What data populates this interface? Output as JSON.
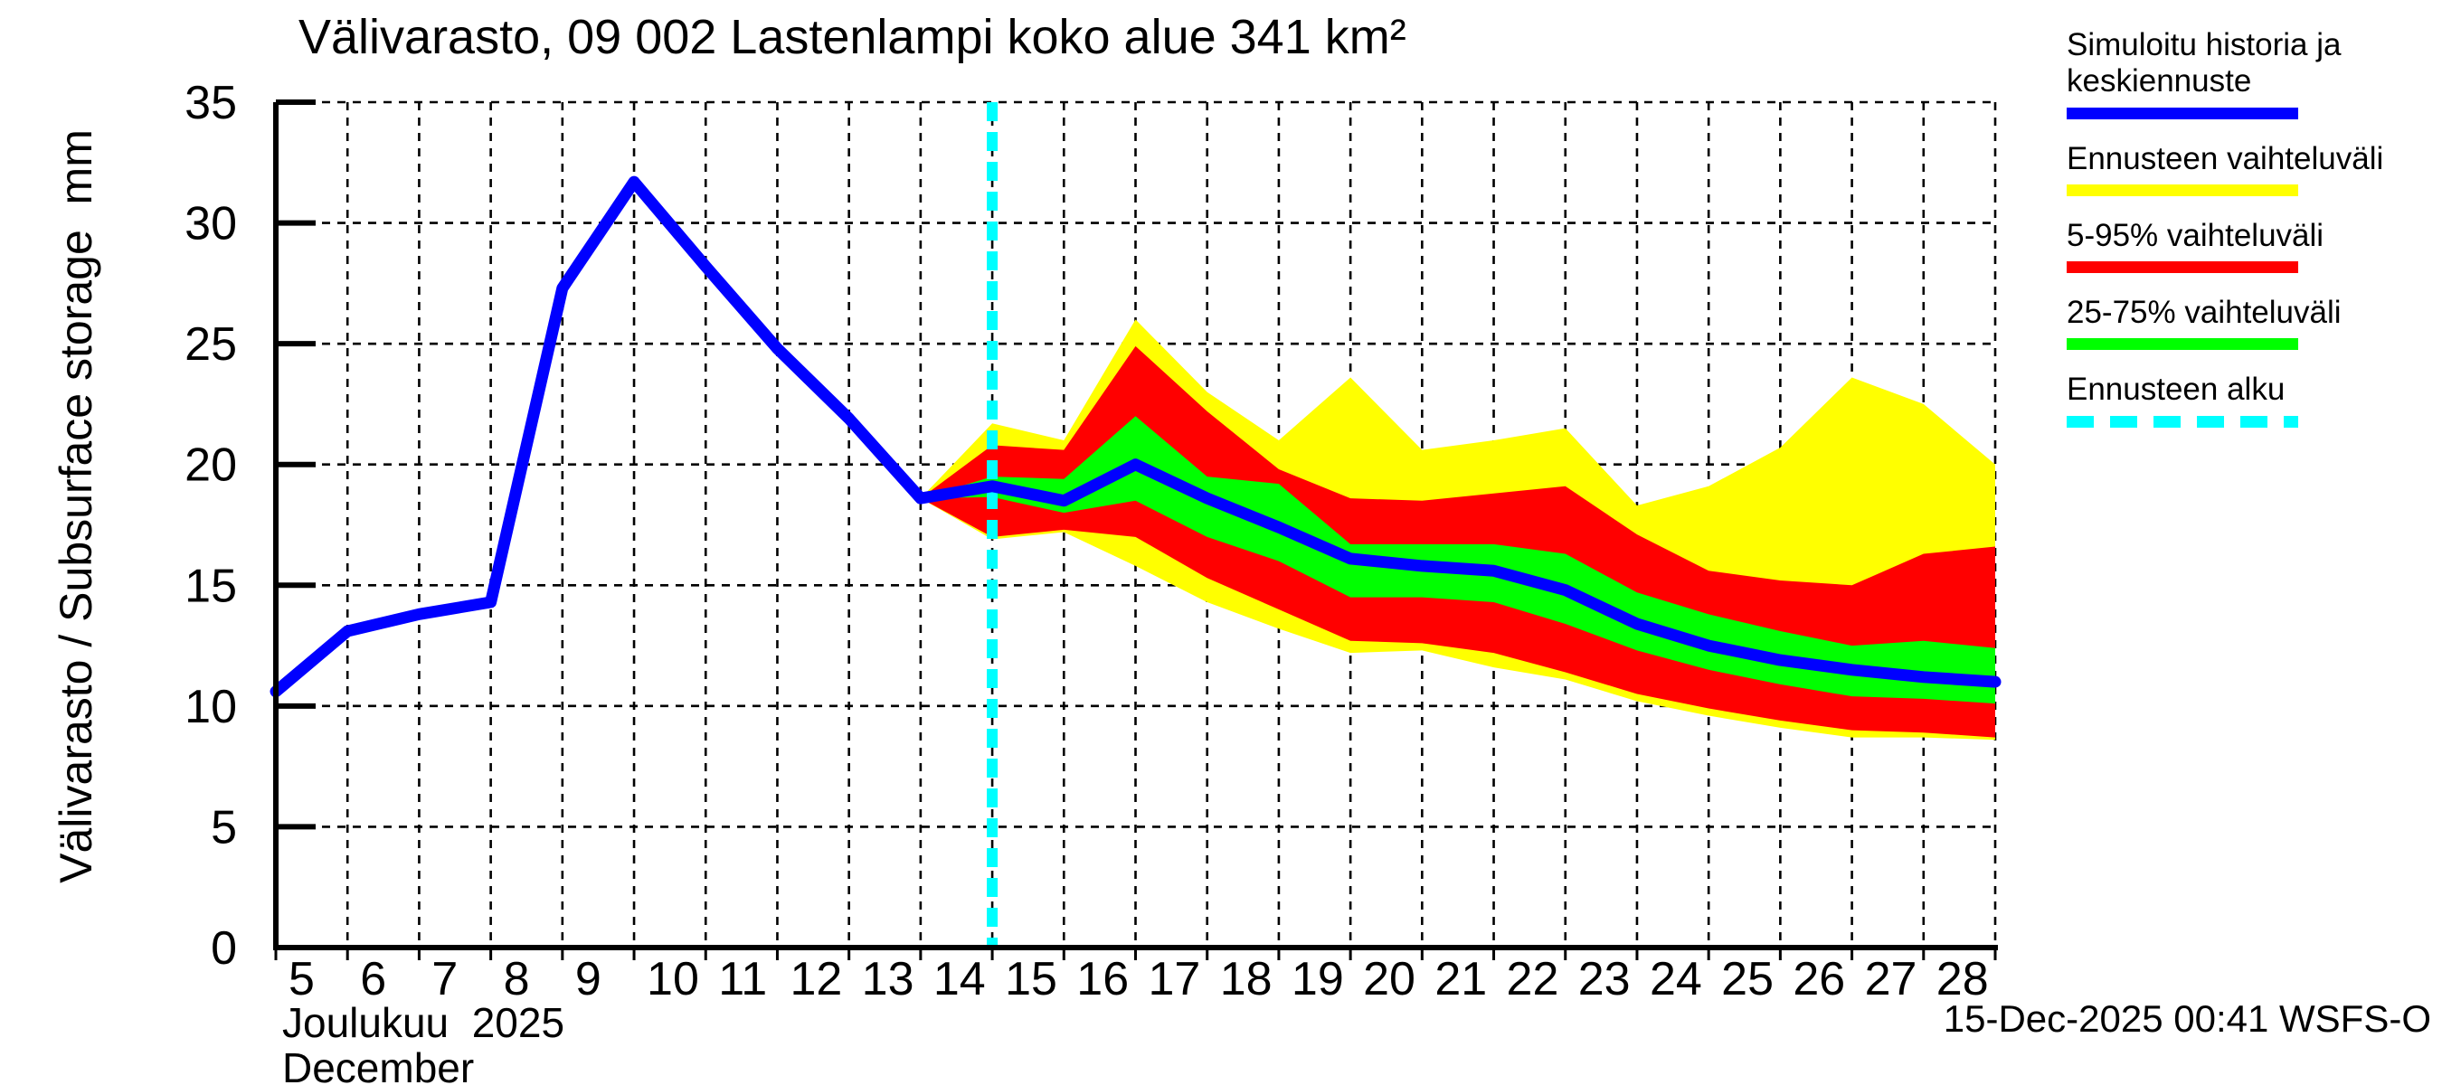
{
  "title": "Välivarasto, 09 002 Lastenlampi koko alue 341 km²",
  "y_axis_label": "Välivarasto / Subsurface storage  mm",
  "x_axis_label_fi": "Joulukuu  2025",
  "x_axis_label_en": "December",
  "footer_timestamp": "15-Dec-2025 00:41 WSFS-O",
  "colors": {
    "history_line": "#0000ff",
    "forecast_range": "#ffff00",
    "range_5_95": "#ff0000",
    "range_25_75": "#00ff00",
    "forecast_start": "#00ffff",
    "axis": "#000000",
    "background": "#ffffff"
  },
  "legend": [
    {
      "label": "Simuloitu historia ja keskiennuste",
      "color": "#0000ff",
      "style": "solid"
    },
    {
      "label": "Ennusteen vaihteluväli",
      "color": "#ffff00",
      "style": "solid"
    },
    {
      "label": "5-95% vaihteluväli",
      "color": "#ff0000",
      "style": "solid"
    },
    {
      "label": "25-75% vaihteluväli",
      "color": "#00ff00",
      "style": "solid"
    },
    {
      "label": "Ennusteen alku",
      "color": "#00ffff",
      "style": "dashed"
    }
  ],
  "chart_data": {
    "type": "line",
    "title": "Välivarasto, 09 002 Lastenlampi koko alue 341 km²",
    "xlabel": "Joulukuu 2025 / December (day of month)",
    "ylabel": "Välivarasto / Subsurface storage  mm",
    "xlim": [
      5,
      29
    ],
    "ylim": [
      0,
      35
    ],
    "x_ticks": [
      5,
      6,
      7,
      8,
      9,
      10,
      11,
      12,
      13,
      14,
      15,
      16,
      17,
      18,
      19,
      20,
      21,
      22,
      23,
      24,
      25,
      26,
      27,
      28
    ],
    "y_ticks": [
      0,
      5,
      10,
      15,
      20,
      25,
      30,
      35
    ],
    "grid": true,
    "forecast_start_day": 15,
    "history": {
      "name": "Simuloitu historia ja keskiennuste",
      "color": "#0000ff",
      "days": [
        5,
        6,
        7,
        8,
        9,
        10,
        11,
        12,
        13,
        14,
        15,
        16,
        17,
        18,
        19,
        20,
        21,
        22,
        23,
        24,
        25,
        26,
        27,
        28,
        29
      ],
      "values": [
        10.6,
        13.1,
        13.8,
        14.3,
        27.3,
        31.7,
        28.2,
        24.8,
        21.9,
        18.6,
        19.1,
        18.5,
        20.0,
        18.6,
        17.4,
        16.1,
        15.8,
        15.6,
        14.8,
        13.4,
        12.5,
        11.9,
        11.5,
        11.2,
        11.0
      ]
    },
    "bands": [
      {
        "name": "Ennusteen vaihteluväli",
        "color": "#ffff00",
        "days": [
          14,
          15,
          16,
          17,
          18,
          19,
          20,
          21,
          22,
          23,
          24,
          25,
          26,
          27,
          28,
          29
        ],
        "upper": [
          18.6,
          21.7,
          21.0,
          26.0,
          23.0,
          21.0,
          23.6,
          20.6,
          21.0,
          21.5,
          18.3,
          19.1,
          20.7,
          23.6,
          22.5,
          20.0
        ],
        "lower": [
          18.6,
          16.9,
          17.2,
          15.8,
          14.3,
          13.2,
          12.2,
          12.3,
          11.6,
          11.1,
          10.2,
          9.6,
          9.1,
          8.7,
          8.7,
          8.6
        ]
      },
      {
        "name": "5-95% vaihteluväli",
        "color": "#ff0000",
        "days": [
          14,
          15,
          16,
          17,
          18,
          19,
          20,
          21,
          22,
          23,
          24,
          25,
          26,
          27,
          28,
          29
        ],
        "upper": [
          18.6,
          20.8,
          20.6,
          24.9,
          22.2,
          19.8,
          18.6,
          18.5,
          18.8,
          19.1,
          17.1,
          15.6,
          15.2,
          15.0,
          16.3,
          16.6
        ],
        "lower": [
          18.6,
          17.0,
          17.3,
          17.0,
          15.3,
          14.0,
          12.7,
          12.6,
          12.2,
          11.4,
          10.5,
          9.9,
          9.4,
          9.0,
          8.9,
          8.7
        ]
      },
      {
        "name": "25-75% vaihteluväli",
        "color": "#00ff00",
        "days": [
          14,
          15,
          16,
          17,
          18,
          19,
          20,
          21,
          22,
          23,
          24,
          25,
          26,
          27,
          28,
          29
        ],
        "upper": [
          18.6,
          19.5,
          19.4,
          22.0,
          19.5,
          19.2,
          16.7,
          16.7,
          16.7,
          16.3,
          14.7,
          13.8,
          13.1,
          12.5,
          12.7,
          12.4
        ],
        "lower": [
          18.6,
          18.65,
          18.0,
          18.5,
          17.0,
          16.0,
          14.5,
          14.5,
          14.3,
          13.4,
          12.3,
          11.5,
          10.9,
          10.4,
          10.3,
          10.1
        ]
      }
    ]
  }
}
